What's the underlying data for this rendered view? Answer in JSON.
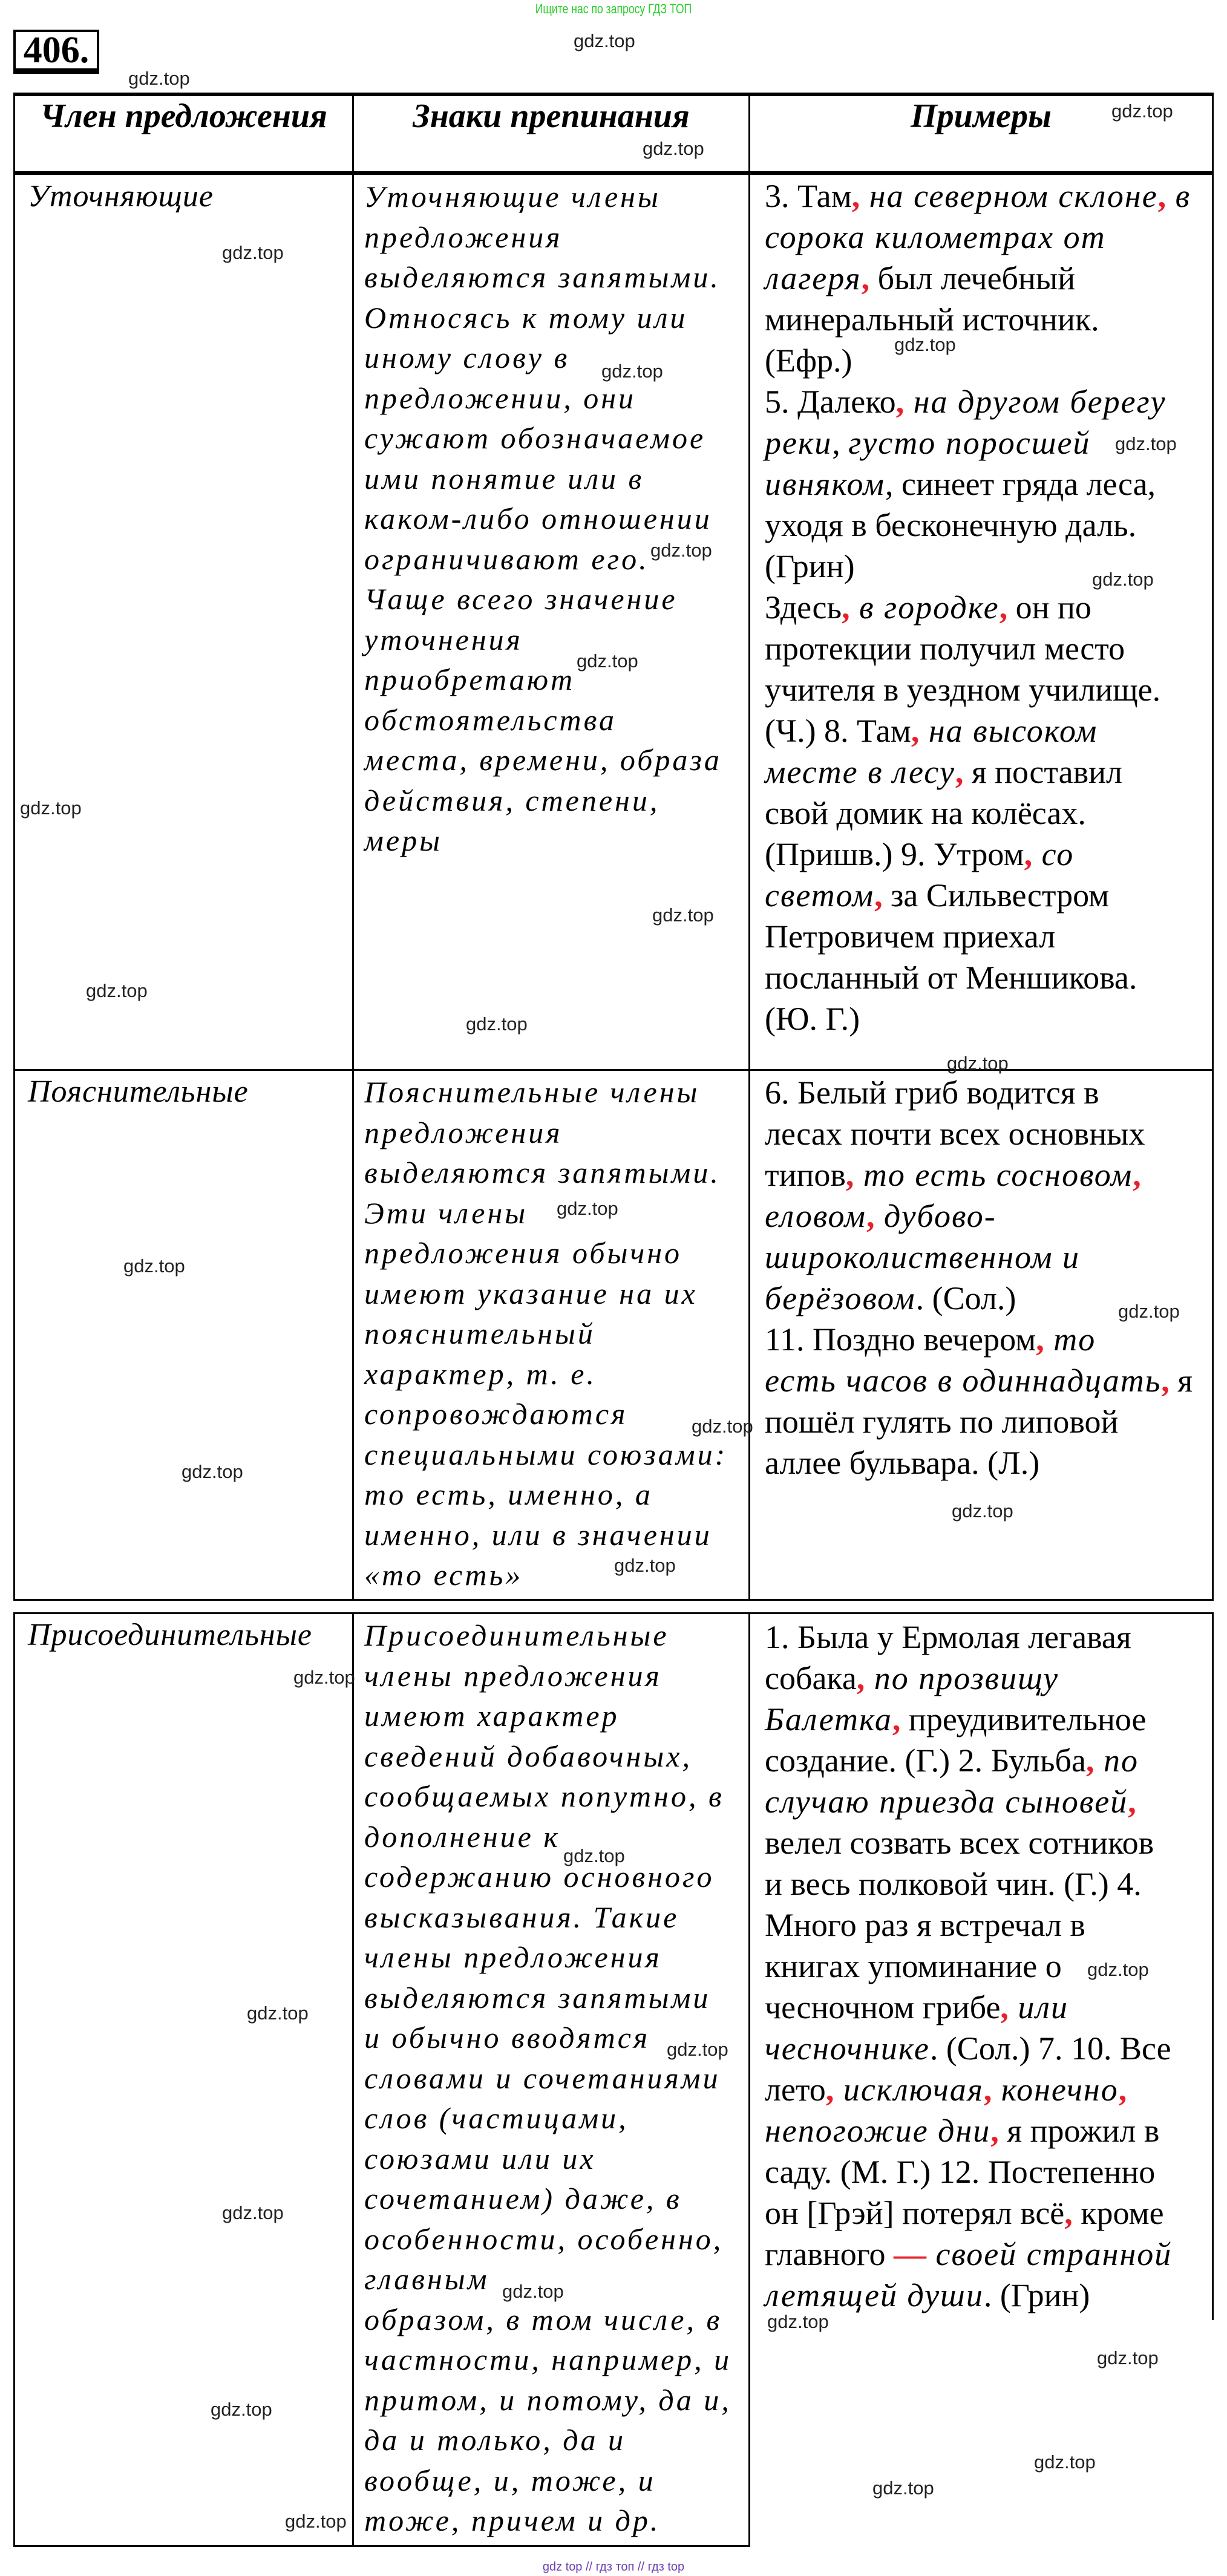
{
  "top_note": "Ищите нас по запросу ГДЗ ТОП",
  "exercise_number": "406.",
  "header": {
    "col1": "Член предложения",
    "col2": "Знаки препинания",
    "col3": "Примеры"
  },
  "colors": {
    "accent_red": "#e8202a",
    "top_note_green": "#2ecc2e",
    "footer_purple": "#6a3fb0"
  },
  "rows": [
    {
      "member": "Уточняющие",
      "rule": [
        "Уточняющие члены",
        "предложения",
        "выделяются запятыми.",
        "Относясь к тому или",
        "иному слову в",
        "предложении, они",
        "сужают обозначаемое",
        "ими понятие или в",
        "каком-либо отношении",
        "ограничивают его.",
        "Чаще всего значение",
        "уточнения",
        "приобретают",
        "обстоятельства",
        "места, времени, образа",
        "действия, степени,",
        "меры"
      ],
      "examples": [
        [
          {
            "s": "n",
            "t": "3. Там"
          },
          {
            "s": "r",
            "t": ","
          },
          {
            "s": "i",
            "t": " на северном склоне"
          },
          {
            "s": "r",
            "t": ","
          },
          {
            "s": "i",
            "t": " в"
          }
        ],
        [
          {
            "s": "i",
            "t": "сорока километрах от"
          }
        ],
        [
          {
            "s": "i",
            "t": "лагеря"
          },
          {
            "s": "r",
            "t": ","
          },
          {
            "s": "n",
            "t": " был лечебный"
          }
        ],
        [
          {
            "s": "n",
            "t": "минеральный источник."
          }
        ],
        [
          {
            "s": "n",
            "t": "(Ефр.)"
          }
        ],
        [
          {
            "s": "n",
            "t": "5. Далеко"
          },
          {
            "s": "r",
            "t": ","
          },
          {
            "s": "i",
            "t": " на другом берегу"
          }
        ],
        [
          {
            "s": "i",
            "t": "реки"
          },
          {
            "s": "n",
            "t": ", "
          },
          {
            "s": "i",
            "t": "густо поросшей"
          }
        ],
        [
          {
            "s": "i",
            "t": "ивняком"
          },
          {
            "s": "n",
            "t": ", синеет гряда леса,"
          }
        ],
        [
          {
            "s": "n",
            "t": "уходя в бесконечную даль."
          }
        ],
        [
          {
            "s": "n",
            "t": "(Грин)"
          }
        ],
        [
          {
            "s": "n",
            "t": "Здесь"
          },
          {
            "s": "r",
            "t": ","
          },
          {
            "s": "i",
            "t": " в городке"
          },
          {
            "s": "r",
            "t": ","
          },
          {
            "s": "n",
            "t": " он по"
          }
        ],
        [
          {
            "s": "n",
            "t": "протекции получил место"
          }
        ],
        [
          {
            "s": "n",
            "t": "учителя в уездном училище."
          }
        ],
        [
          {
            "s": "n",
            "t": "(Ч.) 8. Там"
          },
          {
            "s": "r",
            "t": ","
          },
          {
            "s": "i",
            "t": " на высоком"
          }
        ],
        [
          {
            "s": "i",
            "t": "месте в лесу"
          },
          {
            "s": "r",
            "t": ","
          },
          {
            "s": "n",
            "t": " я поставил"
          }
        ],
        [
          {
            "s": "n",
            "t": "свой домик на колёсах."
          }
        ],
        [
          {
            "s": "n",
            "t": "(Пришв.) 9. Утром"
          },
          {
            "s": "r",
            "t": ","
          },
          {
            "s": "i",
            "t": " со"
          }
        ],
        [
          {
            "s": "i",
            "t": "светом"
          },
          {
            "s": "r",
            "t": ","
          },
          {
            "s": "n",
            "t": " за Сильвестром"
          }
        ],
        [
          {
            "s": "n",
            "t": "Петровичем приехал"
          }
        ],
        [
          {
            "s": "n",
            "t": "посланный от Меншикова."
          }
        ],
        [
          {
            "s": "n",
            "t": "(Ю. Г.)"
          }
        ]
      ]
    },
    {
      "member": "Пояснительные",
      "rule": [
        "Пояснительные члены",
        "предложения",
        "выделяются запятыми.",
        "Эти члены",
        "предложения обычно",
        "имеют указание на их",
        "пояснительный",
        "характер, т. е.",
        "сопровождаются",
        "специальными союзами:",
        "то есть, именно, а",
        "именно, или в значении",
        "«то есть»"
      ],
      "examples": [
        [
          {
            "s": "n",
            "t": "6. Белый гриб водится в"
          }
        ],
        [
          {
            "s": "n",
            "t": "лесах почти всех основных"
          }
        ],
        [
          {
            "s": "n",
            "t": "типов"
          },
          {
            "s": "r",
            "t": ","
          },
          {
            "s": "i",
            "t": " то есть сосновом"
          },
          {
            "s": "r",
            "t": ","
          }
        ],
        [
          {
            "s": "i",
            "t": "еловом"
          },
          {
            "s": "r",
            "t": ","
          },
          {
            "s": "i",
            "t": " дубово-"
          }
        ],
        [
          {
            "s": "i",
            "t": "широколиственном и"
          }
        ],
        [
          {
            "s": "i",
            "t": "берёзовом"
          },
          {
            "s": "n",
            "t": ". (Сол.)"
          }
        ],
        [
          {
            "s": "n",
            "t": "11. Поздно вечером"
          },
          {
            "s": "r",
            "t": ","
          },
          {
            "s": "i",
            "t": " то"
          }
        ],
        [
          {
            "s": "i",
            "t": "есть часов в одиннадцать"
          },
          {
            "s": "r",
            "t": ","
          },
          {
            "s": "n",
            "t": " я"
          }
        ],
        [
          {
            "s": "n",
            "t": "пошёл гулять по липовой"
          }
        ],
        [
          {
            "s": "n",
            "t": "аллее бульвара. (Л.)"
          }
        ]
      ]
    },
    {
      "member": "Присоединительные",
      "rule": [
        "Присоединительные",
        "члены предложения",
        "имеют характер",
        "сведений добавочных,",
        "сообщаемых попутно, в",
        "дополнение к",
        "содержанию основного",
        "высказывания. Такие",
        "члены предложения",
        "выделяются запятыми",
        "и обычно вводятся",
        "словами и сочетаниями",
        "слов (частицами,",
        "союзами или их",
        "сочетанием) даже, в",
        "особенности, особенно,",
        "главным",
        "образом, в том числе, в",
        "частности, например, и",
        "притом, и потому, да и,",
        "да и только, да и",
        "вообще, и, тоже, и",
        "тоже, причем и др."
      ],
      "examples": [
        [
          {
            "s": "n",
            "t": "1. Была у Ермолая легавая"
          }
        ],
        [
          {
            "s": "n",
            "t": "собака"
          },
          {
            "s": "r",
            "t": ","
          },
          {
            "s": "i",
            "t": " по прозвищу"
          }
        ],
        [
          {
            "s": "i",
            "t": "Балетка"
          },
          {
            "s": "r",
            "t": ","
          },
          {
            "s": "n",
            "t": " преудивительное"
          }
        ],
        [
          {
            "s": "n",
            "t": "создание. (Г.) 2. Бульба"
          },
          {
            "s": "r",
            "t": ","
          },
          {
            "s": "i",
            "t": " по"
          }
        ],
        [
          {
            "s": "i",
            "t": "случаю приезда сыновей"
          },
          {
            "s": "r",
            "t": ","
          }
        ],
        [
          {
            "s": "n",
            "t": "велел созвать всех сотников"
          }
        ],
        [
          {
            "s": "n",
            "t": "и весь полковой чин. (Г.) 4."
          }
        ],
        [
          {
            "s": "n",
            "t": "Много раз я встречал в"
          }
        ],
        [
          {
            "s": "n",
            "t": "книгах упоминание о"
          }
        ],
        [
          {
            "s": "n",
            "t": "чесночном грибе"
          },
          {
            "s": "r",
            "t": ","
          },
          {
            "s": "i",
            "t": " или"
          }
        ],
        [
          {
            "s": "i",
            "t": "чесночнике"
          },
          {
            "s": "n",
            "t": ". (Сол.) 7. 10. Все"
          }
        ],
        [
          {
            "s": "n",
            "t": "лето"
          },
          {
            "s": "r",
            "t": ","
          },
          {
            "s": "i",
            "t": " исключая"
          },
          {
            "s": "r",
            "t": ","
          },
          {
            "s": "i",
            "t": " конечно"
          },
          {
            "s": "r",
            "t": ","
          }
        ],
        [
          {
            "s": "i",
            "t": "непогожие дни"
          },
          {
            "s": "r",
            "t": ","
          },
          {
            "s": "n",
            "t": " я прожил в"
          }
        ],
        [
          {
            "s": "n",
            "t": "саду. (М. Г.) 12. Постепенно"
          }
        ],
        [
          {
            "s": "n",
            "t": "он [Грэй] потерял всё"
          },
          {
            "s": "r",
            "t": ","
          },
          {
            "s": "n",
            "t": " кроме"
          }
        ],
        [
          {
            "s": "n",
            "t": "главного "
          },
          {
            "s": "r",
            "t": "—"
          },
          {
            "s": "i",
            "t": " своей странной"
          }
        ],
        [
          {
            "s": "i",
            "t": "летящей души"
          },
          {
            "s": "n",
            "t": ". (Грин)"
          }
        ]
      ]
    }
  ],
  "watermark": "gdz.top",
  "footer": "gdz top // гдз топ // гдз top"
}
